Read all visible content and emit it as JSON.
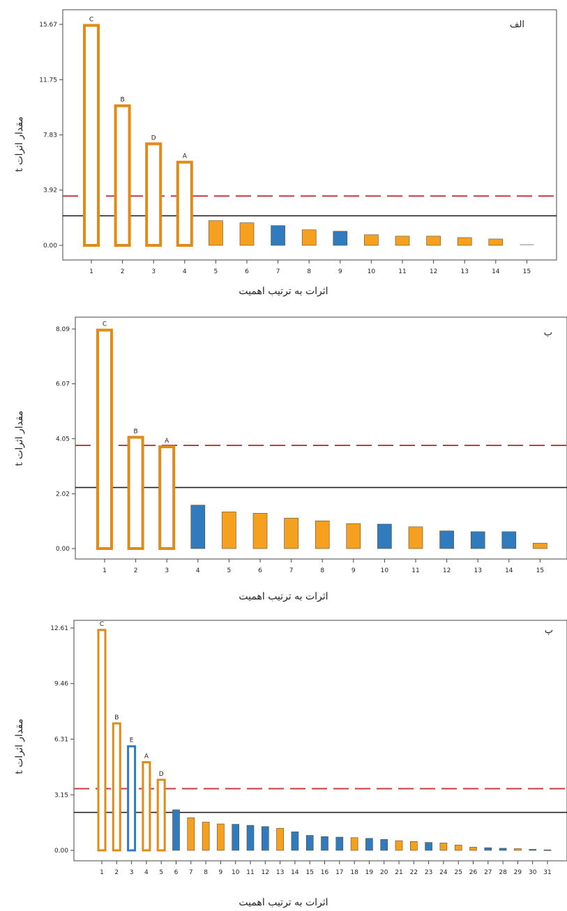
{
  "colors": {
    "orange": "#F5A11F",
    "blue": "#2F7BBE",
    "outline": "#E08A17",
    "red_line": "#C8393A",
    "black_line": "#222222"
  },
  "chart_data": [
    {
      "type": "bar",
      "panel_tag": "الف",
      "ylabel": "مقدار اثرات t",
      "xlabel": "اثرات به ترتیب اهمیت",
      "yticks": [
        "0.00",
        "3.92",
        "7.83",
        "11.75",
        "15.67"
      ],
      "ylim": [
        0,
        15.67
      ],
      "categories": [
        "1",
        "2",
        "3",
        "4",
        "5",
        "6",
        "7",
        "8",
        "9",
        "10",
        "11",
        "12",
        "13",
        "14",
        "15"
      ],
      "values": [
        15.6,
        9.9,
        7.2,
        5.9,
        1.75,
        1.6,
        1.4,
        1.1,
        1.0,
        0.75,
        0.65,
        0.65,
        0.55,
        0.45,
        0.03
      ],
      "bar_style": [
        "hollow",
        "hollow",
        "hollow",
        "hollow",
        "orange",
        "orange",
        "blue",
        "orange",
        "blue",
        "orange",
        "orange",
        "orange",
        "orange",
        "orange",
        "gray"
      ],
      "bar_labels": [
        "C",
        "B",
        "D",
        "A",
        "",
        "",
        "",
        "",
        "",
        "",
        "",
        "",
        "",
        "",
        ""
      ],
      "reference_lines": {
        "dashed_red": 3.5,
        "solid_black": 2.1
      }
    },
    {
      "type": "bar",
      "panel_tag": "ب",
      "ylabel": "مقدار اثرات t",
      "xlabel": "اثرات به ترتیب اهمیت",
      "yticks": [
        "0.00",
        "2.02",
        "4.05",
        "6.07",
        "8.09"
      ],
      "ylim": [
        0,
        8.09
      ],
      "categories": [
        "1",
        "2",
        "3",
        "4",
        "5",
        "6",
        "7",
        "8",
        "9",
        "10",
        "11",
        "12",
        "13",
        "14",
        "15"
      ],
      "values": [
        8.05,
        4.1,
        3.75,
        1.6,
        1.35,
        1.3,
        1.12,
        1.02,
        0.92,
        0.9,
        0.8,
        0.65,
        0.62,
        0.62,
        0.2
      ],
      "bar_style": [
        "hollow",
        "hollow",
        "hollow",
        "blue",
        "orange",
        "orange",
        "orange",
        "orange",
        "orange",
        "blue",
        "orange",
        "blue",
        "blue",
        "blue",
        "orange"
      ],
      "bar_labels": [
        "C",
        "B",
        "A",
        "",
        "",
        "",
        "",
        "",
        "",
        "",
        "",
        "",
        "",
        "",
        ""
      ],
      "reference_lines": {
        "dashed_red": 3.8,
        "solid_black": 2.25
      }
    },
    {
      "type": "bar",
      "panel_tag": "پ",
      "ylabel": "مقدار اثرات t",
      "xlabel": "اثرات به ترتیب اهمیت",
      "yticks": [
        "0.00",
        "3.15",
        "6.31",
        "9.46",
        "12.61"
      ],
      "ylim": [
        0,
        12.61
      ],
      "categories": [
        "1",
        "2",
        "3",
        "4",
        "5",
        "6",
        "7",
        "8",
        "9",
        "10",
        "11",
        "12",
        "13",
        "14",
        "15",
        "16",
        "17",
        "18",
        "19",
        "20",
        "21",
        "22",
        "23",
        "24",
        "25",
        "26",
        "27",
        "28",
        "29",
        "30",
        "31"
      ],
      "values": [
        12.5,
        7.2,
        5.9,
        5.0,
        4.0,
        2.3,
        1.85,
        1.6,
        1.5,
        1.48,
        1.42,
        1.35,
        1.25,
        1.05,
        0.85,
        0.78,
        0.75,
        0.72,
        0.68,
        0.62,
        0.55,
        0.5,
        0.45,
        0.42,
        0.3,
        0.18,
        0.15,
        0.12,
        0.1,
        0.06,
        0.03
      ],
      "bar_style": [
        "hollow",
        "hollow",
        "hollow_blue",
        "hollow",
        "hollow",
        "blue",
        "orange",
        "orange",
        "orange",
        "blue",
        "blue",
        "blue",
        "orange",
        "blue",
        "blue",
        "blue",
        "blue",
        "orange",
        "blue",
        "blue",
        "orange",
        "orange",
        "blue",
        "orange",
        "orange",
        "orange",
        "blue",
        "blue",
        "orange",
        "blue",
        "blue"
      ],
      "bar_labels": [
        "C",
        "B",
        "E",
        "A",
        "D",
        "",
        "",
        "",
        "",
        "",
        "",
        "",
        "",
        "",
        "",
        "",
        "",
        "",
        "",
        "",
        "",
        "",
        "",
        "",
        "",
        "",
        "",
        "",
        "",
        "",
        ""
      ],
      "reference_lines": {
        "dashed_red": 3.5,
        "solid_black": 2.15
      }
    }
  ]
}
